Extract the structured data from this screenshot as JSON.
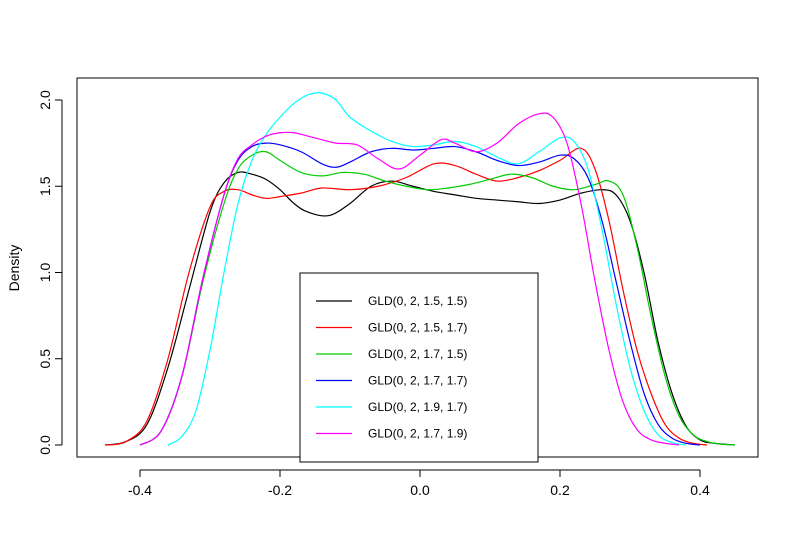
{
  "chart_data": {
    "type": "line",
    "title": "",
    "xlabel": "",
    "ylabel": "Density",
    "xlim": [
      -0.45,
      0.45
    ],
    "ylim": [
      0.0,
      2.0
    ],
    "xticks": [
      -0.4,
      -0.2,
      0.0,
      0.2,
      0.4
    ],
    "xtick_labels": [
      "-0.4",
      "-0.2",
      "0.0",
      "0.2",
      "0.4"
    ],
    "yticks": [
      0.0,
      0.5,
      1.0,
      1.5,
      2.0
    ],
    "ytick_labels": [
      "0.0",
      "0.5",
      "1.0",
      "1.5",
      "2.0"
    ],
    "grid": false,
    "legend_position": "bottom-center",
    "series": [
      {
        "name": "GLD(0, 2, 1.5, 1.5)",
        "color": "#000000",
        "x": [
          -0.45,
          -0.42,
          -0.39,
          -0.36,
          -0.33,
          -0.3,
          -0.28,
          -0.26,
          -0.24,
          -0.22,
          -0.2,
          -0.18,
          -0.16,
          -0.13,
          -0.1,
          -0.07,
          -0.04,
          -0.01,
          0.02,
          0.05,
          0.08,
          0.11,
          0.14,
          0.17,
          0.2,
          0.23,
          0.26,
          0.28,
          0.3,
          0.32,
          0.34,
          0.36,
          0.38,
          0.4,
          0.42,
          0.45
        ],
        "y": [
          0.0,
          0.02,
          0.12,
          0.45,
          0.9,
          1.35,
          1.52,
          1.58,
          1.57,
          1.54,
          1.48,
          1.4,
          1.35,
          1.33,
          1.4,
          1.5,
          1.53,
          1.5,
          1.47,
          1.45,
          1.43,
          1.42,
          1.41,
          1.4,
          1.42,
          1.46,
          1.48,
          1.45,
          1.3,
          1.0,
          0.6,
          0.3,
          0.11,
          0.03,
          0.01,
          0.0
        ]
      },
      {
        "name": "GLD(0, 2, 1.5, 1.7)",
        "color": "#ff0000",
        "x": [
          -0.45,
          -0.42,
          -0.39,
          -0.36,
          -0.33,
          -0.3,
          -0.28,
          -0.26,
          -0.24,
          -0.22,
          -0.2,
          -0.17,
          -0.14,
          -0.1,
          -0.06,
          -0.02,
          0.02,
          0.05,
          0.08,
          0.11,
          0.14,
          0.17,
          0.2,
          0.23,
          0.25,
          0.27,
          0.29,
          0.31,
          0.33,
          0.35,
          0.37,
          0.39,
          0.41
        ],
        "y": [
          0.0,
          0.02,
          0.14,
          0.5,
          1.0,
          1.38,
          1.47,
          1.48,
          1.45,
          1.43,
          1.44,
          1.46,
          1.49,
          1.48,
          1.5,
          1.55,
          1.63,
          1.62,
          1.57,
          1.53,
          1.55,
          1.59,
          1.65,
          1.72,
          1.6,
          1.3,
          0.9,
          0.55,
          0.3,
          0.12,
          0.04,
          0.01,
          0.0
        ]
      },
      {
        "name": "GLD(0, 2, 1.7, 1.5)",
        "color": "#00cc00",
        "x": [
          -0.4,
          -0.37,
          -0.34,
          -0.31,
          -0.28,
          -0.26,
          -0.24,
          -0.22,
          -0.2,
          -0.17,
          -0.14,
          -0.11,
          -0.08,
          -0.05,
          -0.02,
          0.01,
          0.04,
          0.07,
          0.1,
          0.13,
          0.16,
          0.19,
          0.22,
          0.25,
          0.27,
          0.29,
          0.31,
          0.33,
          0.35,
          0.37,
          0.39,
          0.41,
          0.43,
          0.45
        ],
        "y": [
          0.0,
          0.08,
          0.4,
          0.95,
          1.4,
          1.6,
          1.68,
          1.7,
          1.65,
          1.58,
          1.56,
          1.58,
          1.57,
          1.53,
          1.5,
          1.48,
          1.49,
          1.51,
          1.54,
          1.57,
          1.55,
          1.5,
          1.48,
          1.51,
          1.53,
          1.45,
          1.15,
          0.75,
          0.4,
          0.17,
          0.06,
          0.02,
          0.005,
          0.0
        ]
      },
      {
        "name": "GLD(0, 2, 1.7, 1.7)",
        "color": "#0000ff",
        "x": [
          -0.4,
          -0.37,
          -0.34,
          -0.31,
          -0.28,
          -0.26,
          -0.24,
          -0.22,
          -0.2,
          -0.17,
          -0.14,
          -0.12,
          -0.1,
          -0.07,
          -0.04,
          -0.01,
          0.02,
          0.05,
          0.08,
          0.11,
          0.14,
          0.17,
          0.2,
          0.22,
          0.24,
          0.26,
          0.28,
          0.3,
          0.32,
          0.34,
          0.36,
          0.38,
          0.4
        ],
        "y": [
          0.0,
          0.08,
          0.4,
          0.97,
          1.45,
          1.65,
          1.73,
          1.75,
          1.74,
          1.7,
          1.63,
          1.61,
          1.64,
          1.7,
          1.72,
          1.71,
          1.72,
          1.73,
          1.7,
          1.65,
          1.62,
          1.64,
          1.68,
          1.66,
          1.55,
          1.3,
          0.95,
          0.6,
          0.3,
          0.12,
          0.04,
          0.01,
          0.0
        ]
      },
      {
        "name": "GLD(0, 2, 1.9, 1.7)",
        "color": "#00ffff",
        "x": [
          -0.36,
          -0.34,
          -0.32,
          -0.3,
          -0.28,
          -0.26,
          -0.24,
          -0.22,
          -0.2,
          -0.18,
          -0.16,
          -0.14,
          -0.12,
          -0.1,
          -0.07,
          -0.04,
          -0.01,
          0.02,
          0.05,
          0.08,
          0.11,
          0.14,
          0.17,
          0.2,
          0.22,
          0.24,
          0.26,
          0.28,
          0.3,
          0.32,
          0.34,
          0.36,
          0.38
        ],
        "y": [
          0.0,
          0.05,
          0.2,
          0.55,
          1.0,
          1.4,
          1.65,
          1.8,
          1.9,
          1.98,
          2.03,
          2.04,
          2.0,
          1.9,
          1.82,
          1.76,
          1.73,
          1.74,
          1.76,
          1.73,
          1.67,
          1.63,
          1.7,
          1.78,
          1.76,
          1.6,
          1.25,
          0.82,
          0.45,
          0.2,
          0.06,
          0.015,
          0.0
        ]
      },
      {
        "name": "GLD(0, 2, 1.7, 1.9)",
        "color": "#ff00ff",
        "x": [
          -0.4,
          -0.37,
          -0.34,
          -0.31,
          -0.28,
          -0.26,
          -0.24,
          -0.22,
          -0.2,
          -0.18,
          -0.15,
          -0.12,
          -0.09,
          -0.06,
          -0.03,
          0.0,
          0.03,
          0.05,
          0.08,
          0.11,
          0.14,
          0.17,
          0.19,
          0.21,
          0.23,
          0.25,
          0.27,
          0.29,
          0.31,
          0.33,
          0.35,
          0.37
        ],
        "y": [
          0.0,
          0.08,
          0.4,
          0.97,
          1.45,
          1.66,
          1.74,
          1.79,
          1.81,
          1.81,
          1.78,
          1.75,
          1.74,
          1.66,
          1.6,
          1.68,
          1.77,
          1.75,
          1.7,
          1.75,
          1.86,
          1.92,
          1.9,
          1.75,
          1.4,
          0.95,
          0.55,
          0.25,
          0.09,
          0.03,
          0.01,
          0.0
        ]
      }
    ]
  }
}
